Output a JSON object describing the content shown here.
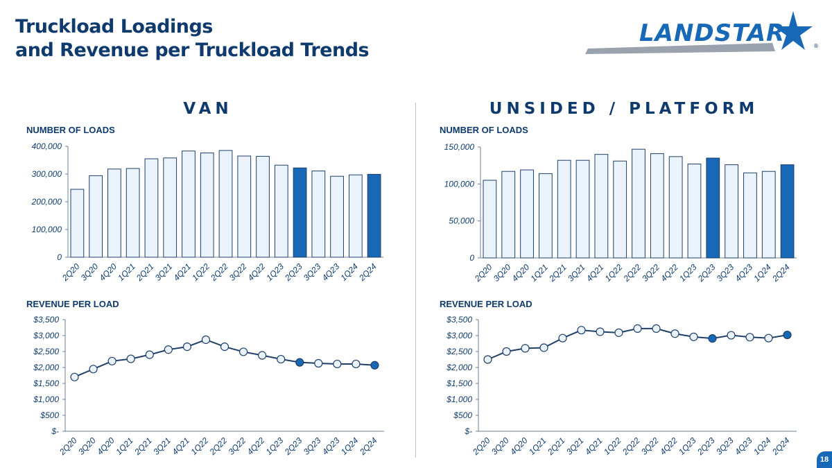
{
  "header": {
    "title_line1": "Truckload Loadings",
    "title_line2": "and Revenue per Truckload Trends",
    "logo_text": "LANDSTAR",
    "logo_mark": "®"
  },
  "sections": {
    "van": "VAN",
    "platform": "UNSIDED / PLATFORM"
  },
  "colors": {
    "title": "#0f3a6e",
    "bar_fill": "#eaf3fb",
    "bar_stroke": "#1f3f66",
    "highlight": "#1769b8",
    "line": "#1f3f66"
  },
  "page_number": "18",
  "chart_data": [
    {
      "id": "van-loads",
      "type": "bar",
      "title": "NUMBER OF LOADS",
      "categories": [
        "2Q20",
        "3Q20",
        "4Q20",
        "1Q21",
        "2Q21",
        "3Q21",
        "4Q21",
        "1Q22",
        "2Q22",
        "3Q22",
        "4Q22",
        "1Q23",
        "2Q23",
        "3Q23",
        "4Q23",
        "1Q24",
        "2Q24"
      ],
      "values": [
        245000,
        294000,
        318000,
        320000,
        355000,
        358000,
        383000,
        376000,
        385000,
        365000,
        364000,
        332000,
        322000,
        311000,
        292000,
        297000,
        299000
      ],
      "highlight": [
        12,
        16
      ],
      "ylim": [
        0,
        400000
      ],
      "yticks": [
        0,
        100000,
        200000,
        300000,
        400000
      ],
      "ytick_labels": [
        "0",
        "100,000",
        "200,000",
        "300,000",
        "400,000"
      ],
      "grid": false
    },
    {
      "id": "van-revenue",
      "type": "line",
      "title": "REVENUE PER LOAD",
      "categories": [
        "2Q20",
        "3Q20",
        "4Q20",
        "1Q21",
        "2Q21",
        "3Q21",
        "4Q21",
        "1Q22",
        "2Q22",
        "3Q22",
        "4Q22",
        "1Q23",
        "2Q23",
        "3Q23",
        "4Q23",
        "1Q24",
        "2Q24"
      ],
      "values": [
        1700,
        1950,
        2200,
        2270,
        2400,
        2560,
        2650,
        2870,
        2650,
        2490,
        2380,
        2260,
        2160,
        2130,
        2110,
        2110,
        2070
      ],
      "highlight": [
        12,
        16
      ],
      "ylim": [
        0,
        3500
      ],
      "yticks": [
        0,
        500,
        1000,
        1500,
        2000,
        2500,
        3000,
        3500
      ],
      "ytick_labels": [
        "$-",
        "$500",
        "$1,000",
        "$1,500",
        "$2,000",
        "$2,500",
        "$3,000",
        "$3,500"
      ],
      "grid": false
    },
    {
      "id": "platform-loads",
      "type": "bar",
      "title": "NUMBER OF LOADS",
      "categories": [
        "2Q20",
        "3Q20",
        "4Q20",
        "1Q21",
        "2Q21",
        "3Q21",
        "4Q21",
        "1Q22",
        "2Q22",
        "3Q22",
        "4Q22",
        "1Q23",
        "2Q23",
        "3Q23",
        "4Q23",
        "1Q24",
        "2Q24"
      ],
      "values": [
        105000,
        117000,
        119000,
        114000,
        132000,
        132000,
        140000,
        131000,
        147000,
        141000,
        137000,
        127000,
        135000,
        126000,
        115000,
        117000,
        126000
      ],
      "highlight": [
        12,
        16
      ],
      "ylim": [
        0,
        150000
      ],
      "yticks": [
        0,
        50000,
        100000,
        150000
      ],
      "ytick_labels": [
        "0",
        "50,000",
        "100,000",
        "150,000"
      ],
      "grid": false
    },
    {
      "id": "platform-revenue",
      "type": "line",
      "title": "REVENUE PER LOAD",
      "categories": [
        "2Q20",
        "3Q20",
        "4Q20",
        "1Q21",
        "2Q21",
        "3Q21",
        "4Q21",
        "1Q22",
        "2Q22",
        "3Q22",
        "4Q22",
        "1Q23",
        "2Q23",
        "3Q23",
        "4Q23",
        "1Q24",
        "2Q24"
      ],
      "values": [
        2250,
        2500,
        2600,
        2620,
        2920,
        3170,
        3120,
        3090,
        3220,
        3220,
        3060,
        2960,
        2910,
        3010,
        2950,
        2920,
        3020
      ],
      "highlight": [
        12,
        16
      ],
      "ylim": [
        0,
        3500
      ],
      "yticks": [
        0,
        500,
        1000,
        1500,
        2000,
        2500,
        3000,
        3500
      ],
      "ytick_labels": [
        "$-",
        "$500",
        "$1,000",
        "$1,500",
        "$2,000",
        "$2,500",
        "$3,000",
        "$3,500"
      ],
      "grid": false
    }
  ]
}
